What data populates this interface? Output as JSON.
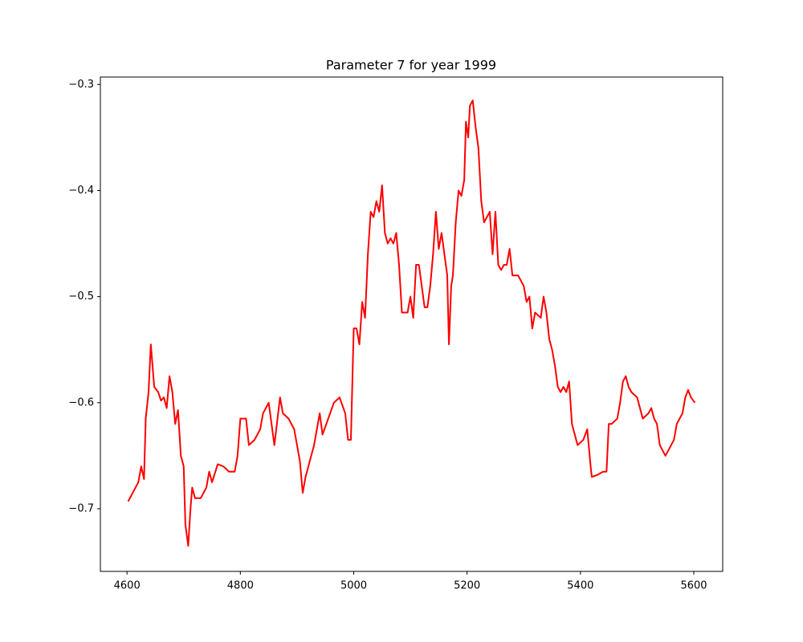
{
  "chart_data": {
    "type": "line",
    "title": "Parameter 7 for year 1999",
    "color": "#ff0000",
    "x": [
      4602,
      4610,
      4620,
      4625,
      4630,
      4633,
      4638,
      4642,
      4648,
      4655,
      4660,
      4665,
      4670,
      4675,
      4680,
      4685,
      4690,
      4695,
      4700,
      4703,
      4708,
      4712,
      4715,
      4720,
      4730,
      4740,
      4745,
      4750,
      4760,
      4770,
      4780,
      4790,
      4795,
      4800,
      4810,
      4815,
      4825,
      4835,
      4840,
      4850,
      4855,
      4860,
      4870,
      4875,
      4885,
      4895,
      4905,
      4910,
      4915,
      4920,
      4930,
      4940,
      4945,
      4955,
      4965,
      4975,
      4985,
      4990,
      4995,
      5000,
      5005,
      5010,
      5015,
      5020,
      5025,
      5030,
      5035,
      5040,
      5045,
      5050,
      5055,
      5060,
      5065,
      5070,
      5075,
      5080,
      5085,
      5095,
      5100,
      5105,
      5110,
      5115,
      5120,
      5125,
      5130,
      5135,
      5140,
      5145,
      5150,
      5155,
      5160,
      5165,
      5168,
      5172,
      5175,
      5180,
      5185,
      5190,
      5195,
      5198,
      5202,
      5205,
      5210,
      5215,
      5220,
      5225,
      5230,
      5240,
      5245,
      5250,
      5255,
      5260,
      5265,
      5270,
      5275,
      5280,
      5290,
      5300,
      5305,
      5310,
      5315,
      5320,
      5330,
      5335,
      5340,
      5345,
      5350,
      5355,
      5360,
      5365,
      5370,
      5375,
      5380,
      5385,
      5395,
      5405,
      5412,
      5418,
      5420,
      5430,
      5440,
      5446,
      5450,
      5455,
      5465,
      5470,
      5475,
      5480,
      5485,
      5490,
      5500,
      5505,
      5510,
      5520,
      5525,
      5530,
      5535,
      5540,
      5545,
      5550,
      5555,
      5560,
      5565,
      5570,
      5575,
      5580,
      5585,
      5590,
      5595,
      5602
    ],
    "values": [
      -0.693,
      -0.685,
      -0.675,
      -0.66,
      -0.672,
      -0.615,
      -0.59,
      -0.545,
      -0.585,
      -0.59,
      -0.598,
      -0.595,
      -0.605,
      -0.575,
      -0.59,
      -0.62,
      -0.607,
      -0.65,
      -0.66,
      -0.715,
      -0.735,
      -0.7,
      -0.68,
      -0.69,
      -0.69,
      -0.68,
      -0.665,
      -0.675,
      -0.658,
      -0.66,
      -0.665,
      -0.665,
      -0.65,
      -0.615,
      -0.615,
      -0.64,
      -0.635,
      -0.625,
      -0.61,
      -0.6,
      -0.62,
      -0.64,
      -0.595,
      -0.61,
      -0.615,
      -0.625,
      -0.655,
      -0.685,
      -0.67,
      -0.66,
      -0.64,
      -0.61,
      -0.63,
      -0.615,
      -0.6,
      -0.595,
      -0.61,
      -0.635,
      -0.635,
      -0.53,
      -0.53,
      -0.545,
      -0.505,
      -0.52,
      -0.46,
      -0.42,
      -0.425,
      -0.41,
      -0.42,
      -0.395,
      -0.44,
      -0.45,
      -0.445,
      -0.45,
      -0.44,
      -0.47,
      -0.515,
      -0.515,
      -0.5,
      -0.52,
      -0.47,
      -0.47,
      -0.49,
      -0.51,
      -0.51,
      -0.49,
      -0.46,
      -0.42,
      -0.455,
      -0.44,
      -0.46,
      -0.48,
      -0.545,
      -0.49,
      -0.48,
      -0.43,
      -0.4,
      -0.405,
      -0.39,
      -0.335,
      -0.35,
      -0.32,
      -0.315,
      -0.34,
      -0.36,
      -0.41,
      -0.43,
      -0.42,
      -0.46,
      -0.42,
      -0.47,
      -0.475,
      -0.47,
      -0.47,
      -0.455,
      -0.48,
      -0.48,
      -0.49,
      -0.505,
      -0.5,
      -0.53,
      -0.515,
      -0.52,
      -0.5,
      -0.515,
      -0.54,
      -0.55,
      -0.565,
      -0.585,
      -0.59,
      -0.585,
      -0.59,
      -0.58,
      -0.62,
      -0.64,
      -0.635,
      -0.625,
      -0.66,
      -0.67,
      -0.668,
      -0.665,
      -0.665,
      -0.62,
      -0.62,
      -0.615,
      -0.6,
      -0.58,
      -0.575,
      -0.585,
      -0.59,
      -0.595,
      -0.605,
      -0.615,
      -0.61,
      -0.605,
      -0.615,
      -0.62,
      -0.64,
      -0.645,
      -0.65,
      -0.645,
      -0.64,
      -0.635,
      -0.62,
      -0.615,
      -0.61,
      -0.595,
      -0.588,
      -0.595,
      -0.6
    ],
    "xlim": [
      4553,
      5651
    ],
    "ylim": [
      -0.759,
      -0.293
    ],
    "xticks": [
      4600,
      4800,
      5000,
      5200,
      5400,
      5600
    ],
    "yticks": [
      {
        "value": -0.7,
        "label": "−0.7"
      },
      {
        "value": -0.6,
        "label": "−0.6"
      },
      {
        "value": -0.5,
        "label": "−0.5"
      },
      {
        "value": -0.4,
        "label": "−0.4"
      },
      {
        "value": -0.3,
        "label": "−0.3"
      }
    ]
  }
}
